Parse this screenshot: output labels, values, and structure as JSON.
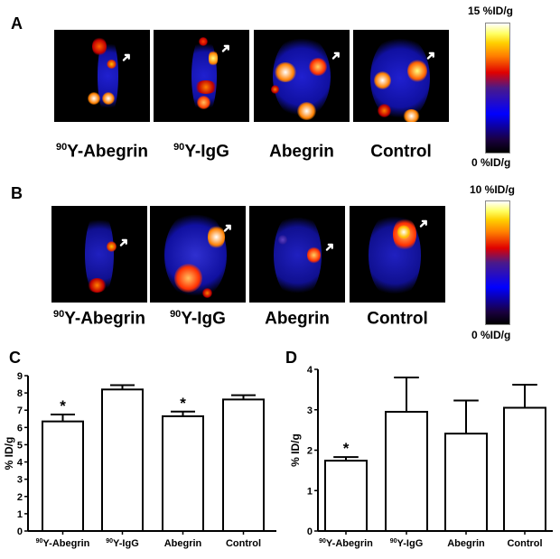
{
  "panels": {
    "A": {
      "letter": "A",
      "labels": [
        {
          "sup": "90",
          "text": "Y-Abegrin"
        },
        {
          "sup": "90",
          "text": "Y-IgG"
        },
        {
          "sup": "",
          "text": "Abegrin"
        },
        {
          "sup": "",
          "text": "Control"
        }
      ],
      "colorbar": {
        "max": "15 %ID/g",
        "min": "0 %ID/g"
      }
    },
    "B": {
      "letter": "B",
      "labels": [
        {
          "sup": "90",
          "text": "Y-Abegrin"
        },
        {
          "sup": "90",
          "text": "Y-IgG"
        },
        {
          "sup": "",
          "text": "Abegrin"
        },
        {
          "sup": "",
          "text": "Control"
        }
      ],
      "colorbar": {
        "max": "10 %ID/g",
        "min": "0 %ID/g"
      }
    }
  },
  "chart_data": [
    {
      "panel": "C",
      "type": "bar",
      "categories": [
        "90Y-Abegrin",
        "90Y-IgG",
        "Abegrin",
        "Control"
      ],
      "category_sups": [
        "90",
        "90",
        "",
        ""
      ],
      "category_texts": [
        "Y-Abegrin",
        "Y-IgG",
        "Abegrin",
        "Control"
      ],
      "values": [
        6.35,
        8.2,
        6.65,
        7.62
      ],
      "errors": [
        0.4,
        0.25,
        0.27,
        0.25
      ],
      "significance": [
        "*",
        "",
        "*",
        ""
      ],
      "ylabel": "% ID/g",
      "ylim": [
        0,
        9
      ],
      "yticks": [
        0,
        1,
        2,
        3,
        4,
        5,
        6,
        7,
        8,
        9
      ],
      "grid": false
    },
    {
      "panel": "D",
      "type": "bar",
      "categories": [
        "90Y-Abegrin",
        "90Y-IgG",
        "Abegrin",
        "Control"
      ],
      "category_sups": [
        "90",
        "90",
        "",
        ""
      ],
      "category_texts": [
        "Y-Abegrin",
        "Y-IgG",
        "Abegrin",
        "Control"
      ],
      "values": [
        1.74,
        2.95,
        2.41,
        3.05
      ],
      "errors": [
        0.09,
        0.85,
        0.82,
        0.57
      ],
      "significance": [
        "*",
        "",
        "",
        ""
      ],
      "ylabel": "% ID/g",
      "ylim": [
        0,
        4
      ],
      "yticks": [
        0,
        1,
        2,
        3,
        4
      ],
      "grid": false
    }
  ],
  "colors": {
    "bar_fill": "#ffffff",
    "bar_stroke": "#000000",
    "pet_background": "#000000"
  }
}
